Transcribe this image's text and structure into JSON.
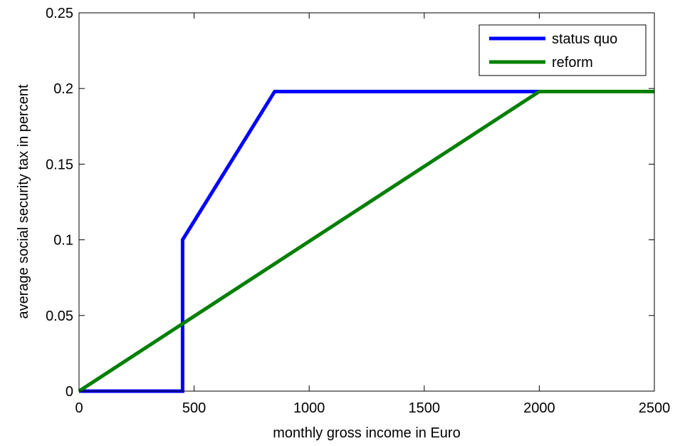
{
  "chart_data": {
    "type": "line",
    "title": "",
    "xlabel": "monthly gross income in Euro",
    "ylabel": "average social security tax in percent",
    "xlim": [
      0,
      2500
    ],
    "ylim": [
      0,
      0.25
    ],
    "xticks": [
      0,
      500,
      1000,
      1500,
      2000,
      2500
    ],
    "xtick_labels": [
      "0",
      "500",
      "1000",
      "1500",
      "2000",
      "2500"
    ],
    "yticks": [
      0,
      0.05,
      0.1,
      0.15,
      0.2,
      0.25
    ],
    "ytick_labels": [
      "0",
      "0.05",
      "0.1",
      "0.15",
      "0.2",
      "0.25"
    ],
    "grid": false,
    "legend_position": "top-right",
    "series": [
      {
        "name": "status quo",
        "color": "#0000ff",
        "x": [
          0,
          450,
          450,
          850,
          2500
        ],
        "y": [
          0,
          0,
          0.1,
          0.198,
          0.198
        ]
      },
      {
        "name": "reform",
        "color": "#007f00",
        "x": [
          0,
          2000,
          2500
        ],
        "y": [
          0,
          0.198,
          0.198
        ]
      }
    ]
  }
}
